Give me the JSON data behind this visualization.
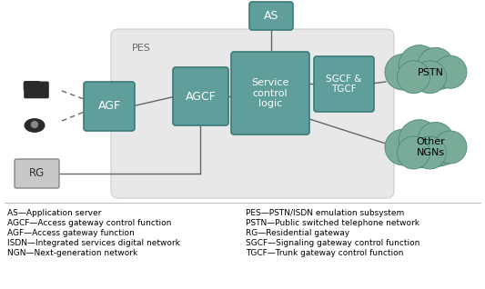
{
  "bg_color": "#ffffff",
  "pes_bg": "#e8e8e8",
  "pes_edge": "#cccccc",
  "teal": "#5f9e9a",
  "teal_edge": "#3a7a78",
  "cloud_color": "#7aab98",
  "cloud_edge": "#4a8a78",
  "rg_fill": "#c8c8c8",
  "rg_edge": "#888888",
  "line_color": "#666666",
  "text_color": "#333333",
  "legend_left": [
    "AS—Application server",
    "AGCF—Access gateway control function",
    "AGF—Access gateway function",
    "ISDN—Integrated services digital network",
    "NGN—Next-generation network"
  ],
  "legend_right": [
    "PES—PSTN/ISDN emulation subsystem",
    "PSTN—Public switched telephone network",
    "RG—Residential gateway",
    "SGCF—Signaling gateway control function",
    "TGCF—Trunk gateway control function"
  ]
}
